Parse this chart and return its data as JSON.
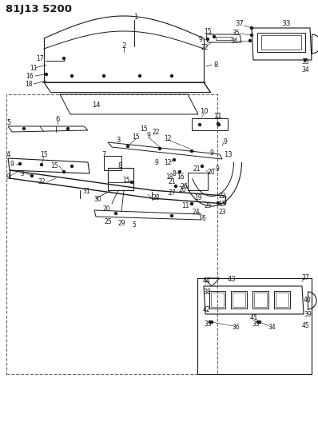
{
  "title": "81J13 5200",
  "bg_color": "#ffffff",
  "lc": "#1a1a1a",
  "fig_width": 3.98,
  "fig_height": 5.33,
  "dpi": 100
}
